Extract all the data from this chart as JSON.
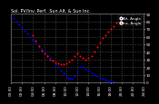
{
  "title": "Sol. PV/Inv. Perf.  Sun Alt. & Sun Inc.",
  "legend_labels": [
    "Alt. Angle",
    "Inc. Angle"
  ],
  "legend_colors": [
    "#0000ff",
    "#ff0000"
  ],
  "bg_color": "#000000",
  "plot_bg_color": "#000000",
  "grid_color": "#444444",
  "ylim": [
    0,
    90
  ],
  "xlim": [
    0,
    24
  ],
  "yticks": [
    0,
    10,
    20,
    30,
    40,
    50,
    60,
    70,
    80,
    90
  ],
  "xtick_vals": [
    0,
    2,
    4,
    6,
    8,
    10,
    12,
    14,
    16,
    18,
    20,
    22,
    24
  ],
  "xtick_labels": [
    "00:00",
    "02:00",
    "04:00",
    "06:00",
    "08:00",
    "10:00",
    "12:00",
    "14:00",
    "16:00",
    "18:00",
    "20:00",
    "22:00",
    "24:00"
  ],
  "sun_altitude_x": [
    0.0,
    0.5,
    1.0,
    1.5,
    2.0,
    2.5,
    3.0,
    3.5,
    4.0,
    4.5,
    5.0,
    5.5,
    6.0,
    6.5,
    7.0,
    7.5,
    8.0,
    8.5,
    9.0,
    9.5,
    10.0,
    10.3,
    10.6,
    11.0,
    11.5,
    12.0,
    12.5,
    13.0,
    13.5,
    14.0,
    14.5,
    15.0,
    15.5,
    16.0,
    16.5,
    17.0,
    17.5,
    18.0,
    18.5
  ],
  "sun_altitude_y": [
    88,
    84,
    80,
    76,
    72,
    68,
    64,
    60,
    56,
    52,
    48,
    44,
    40,
    36,
    32,
    28,
    24,
    20,
    16,
    12,
    8,
    6,
    5,
    5,
    8,
    14,
    20,
    20,
    18,
    15,
    12,
    10,
    8,
    6,
    5,
    4,
    3,
    2,
    1
  ],
  "sun_incidence_x": [
    4.0,
    4.5,
    5.0,
    5.5,
    6.0,
    6.5,
    7.0,
    7.5,
    8.0,
    8.5,
    9.0,
    9.5,
    10.0,
    10.5,
    11.0,
    11.5,
    12.0,
    12.5,
    13.0,
    13.5,
    14.0,
    14.5,
    15.0,
    15.5,
    16.0,
    16.5,
    17.0,
    17.5,
    18.0,
    18.5,
    19.0,
    19.5,
    20.0
  ],
  "sun_incidence_y": [
    62,
    55,
    48,
    42,
    38,
    34,
    30,
    28,
    26,
    25,
    24,
    24,
    25,
    27,
    30,
    34,
    38,
    35,
    32,
    30,
    32,
    35,
    40,
    46,
    52,
    58,
    62,
    66,
    70,
    74,
    78,
    80,
    82
  ],
  "dot_size": 1.5,
  "title_fontsize": 3.5,
  "tick_fontsize": 3,
  "legend_fontsize": 3
}
